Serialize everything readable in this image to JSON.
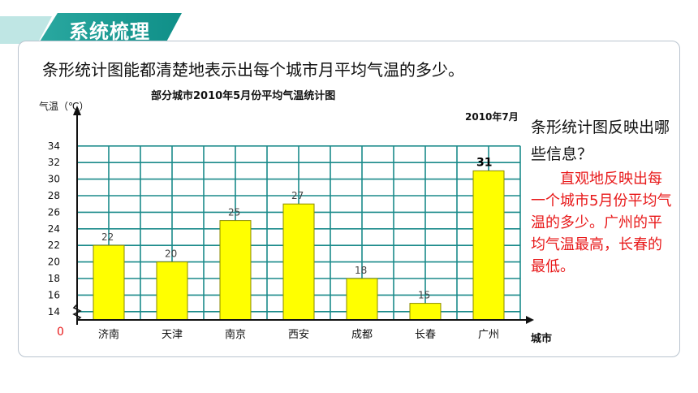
{
  "header": {
    "title": "系统梳理"
  },
  "intro": "条形统计图能都清楚地表示出每个城市月平均气温的多少。",
  "question": "条形统计图反映出哪些信息？",
  "answer": "直观地反映出每一个城市5月份平均气温的多少。广州的平均气温最高，长春的最低。",
  "colors": {
    "bar": "#ffff00",
    "grid": "#1a8a8a",
    "accent": "#1a9a94",
    "answer": "#e8191a"
  },
  "chart_data": {
    "type": "bar",
    "title": "部分城市2010年5月份平均气温统计图",
    "date_note": "2010年7月",
    "ylabel": "气温（℃）",
    "xlabel": "城市",
    "origin_label": "0",
    "axis_break": true,
    "ylim": [
      13,
      35
    ],
    "yticks": [
      14,
      16,
      18,
      20,
      22,
      24,
      26,
      28,
      30,
      32,
      34
    ],
    "categories": [
      "济南",
      "天津",
      "南京",
      "西安",
      "成都",
      "长春",
      "广州"
    ],
    "values": [
      22,
      20,
      25,
      27,
      18,
      15,
      31
    ],
    "grid": true
  }
}
